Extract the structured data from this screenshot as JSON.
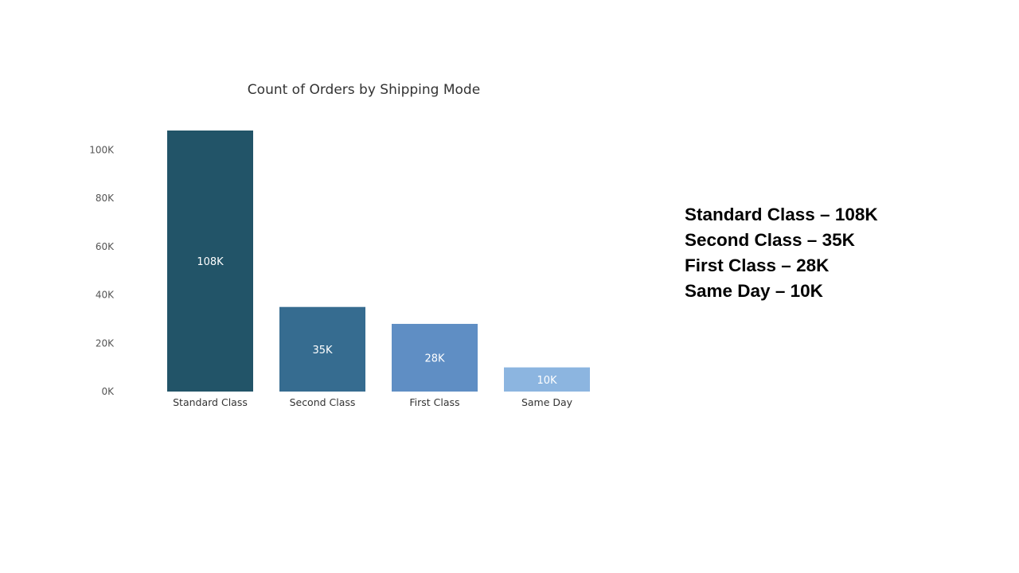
{
  "chart_data": {
    "type": "bar",
    "title": "Count of Orders by Shipping Mode",
    "xlabel": "",
    "ylabel": "",
    "categories": [
      "Standard Class",
      "Second Class",
      "First Class",
      "Same Day"
    ],
    "values": [
      108000,
      35000,
      28000,
      10000
    ],
    "data_labels": [
      "108K",
      "35K",
      "28K",
      "10K"
    ],
    "bar_colors": [
      "#225468",
      "#366c90",
      "#5f8ec4",
      "#8cb5e0"
    ],
    "ylim": [
      0,
      108000
    ],
    "yticks": [
      0,
      20000,
      40000,
      60000,
      80000,
      100000
    ],
    "ytick_labels": [
      "0K",
      "20K",
      "40K",
      "60K",
      "80K",
      "100K"
    ],
    "grid": false,
    "legend": "none"
  },
  "summary": {
    "lines": [
      "Standard Class – 108K",
      "Second Class – 35K",
      "First Class – 28K",
      "Same Day – 10K"
    ]
  }
}
